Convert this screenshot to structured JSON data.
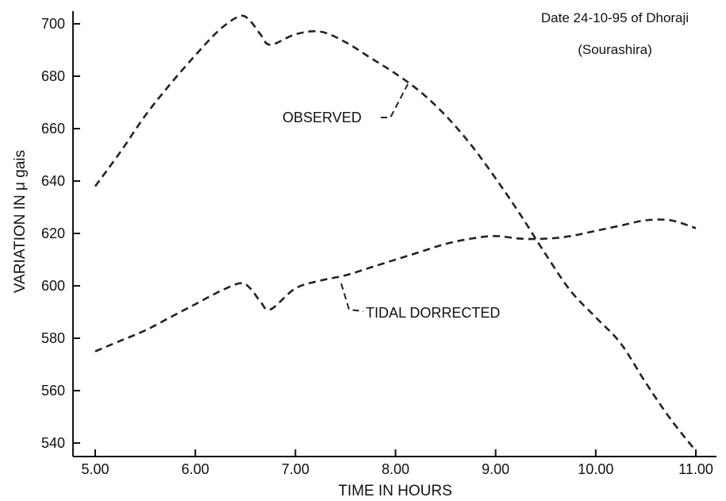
{
  "chart_data": {
    "type": "line",
    "annotation": [
      "Date 24-10-95 of Dhoraji",
      "(Sourashira)"
    ],
    "xlabel": "TIME IN HOURS",
    "ylabel": "VARIATION IN μ gais",
    "xlim": [
      5.0,
      11.0
    ],
    "ylim": [
      535,
      705
    ],
    "x_ticks": [
      5.0,
      6.0,
      7.0,
      8.0,
      9.0,
      10.0,
      11.0
    ],
    "x_tick_labels": [
      "5.00",
      "6.00",
      "7.00",
      "8.00",
      "9.00",
      "10.00",
      "11.00"
    ],
    "y_ticks": [
      540,
      560,
      580,
      600,
      620,
      640,
      660,
      680,
      700
    ],
    "y_tick_labels": [
      "540",
      "560",
      "580",
      "600",
      "620",
      "640",
      "660",
      "680",
      "700"
    ],
    "grid": false,
    "line_style": "dashed",
    "series": [
      {
        "name": "OBSERVED",
        "x": [
          5.0,
          5.25,
          5.5,
          5.75,
          6.0,
          6.25,
          6.45,
          6.55,
          6.65,
          6.75,
          7.0,
          7.25,
          7.5,
          7.75,
          8.0,
          8.25,
          8.5,
          8.75,
          9.0,
          9.25,
          9.5,
          9.75,
          10.0,
          10.25,
          10.5,
          10.75,
          11.0
        ],
        "y": [
          638,
          651,
          665,
          677,
          688,
          698,
          703,
          701,
          696,
          692,
          696,
          697,
          693,
          687,
          681,
          674,
          665,
          654,
          641,
          627,
          612,
          598,
          588,
          578,
          563,
          549,
          537
        ]
      },
      {
        "name": "TIDAL DORRECTED",
        "x": [
          5.0,
          5.25,
          5.5,
          5.75,
          6.0,
          6.25,
          6.45,
          6.55,
          6.65,
          6.75,
          7.0,
          7.25,
          7.5,
          7.75,
          8.0,
          8.25,
          8.5,
          8.75,
          9.0,
          9.25,
          9.5,
          9.75,
          10.0,
          10.25,
          10.5,
          10.75,
          11.0
        ],
        "y": [
          575,
          579,
          583,
          588,
          593,
          598,
          601,
          599,
          594,
          591,
          599,
          602,
          604,
          607,
          610,
          613,
          616,
          618,
          619,
          618,
          618,
          619,
          621,
          623,
          625,
          625,
          622
        ]
      }
    ]
  }
}
